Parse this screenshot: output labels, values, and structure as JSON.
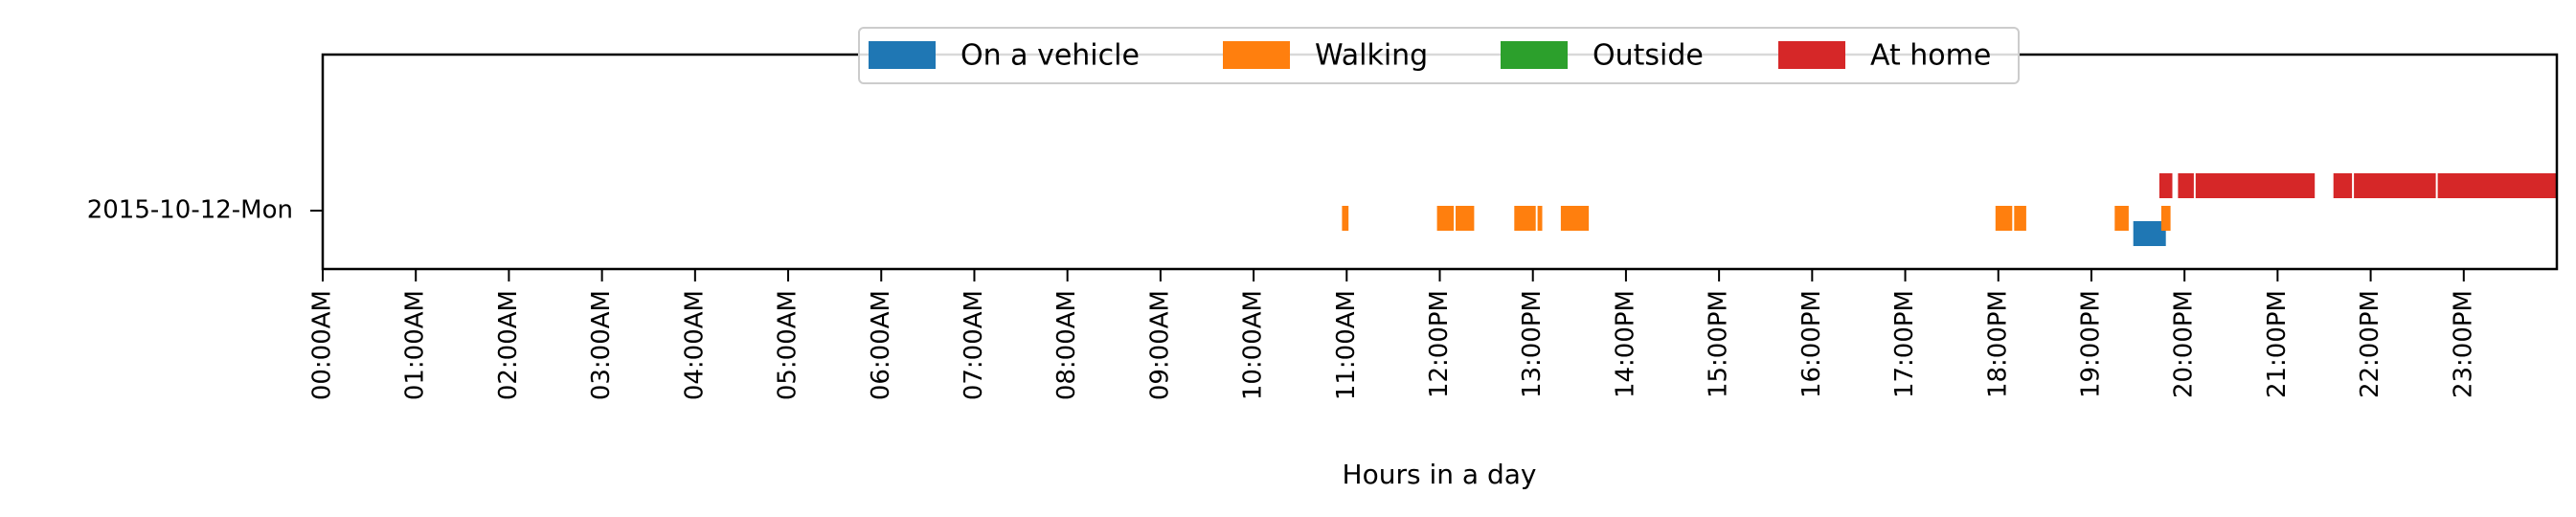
{
  "chart_data": {
    "type": "timeline",
    "title": "",
    "xlabel": "Hours in a day",
    "ylabel": "",
    "xlim": [
      0,
      24
    ],
    "categories": [
      "2015-10-12-Mon"
    ],
    "x_ticks": [
      "00:00AM",
      "01:00AM",
      "02:00AM",
      "03:00AM",
      "04:00AM",
      "05:00AM",
      "06:00AM",
      "07:00AM",
      "08:00AM",
      "09:00AM",
      "10:00AM",
      "11:00AM",
      "12:00PM",
      "13:00PM",
      "14:00PM",
      "15:00PM",
      "16:00PM",
      "17:00PM",
      "18:00PM",
      "19:00PM",
      "20:00PM",
      "21:00PM",
      "22:00PM",
      "23:00PM"
    ],
    "grid": false,
    "legend_position": "top-center",
    "series": [
      {
        "name": "On a vehicle",
        "color": "#1f77b4",
        "lane": "lower",
        "intervals": [
          [
            19.45,
            19.8
          ]
        ]
      },
      {
        "name": "Walking",
        "color": "#ff7f0e",
        "lane": "middle",
        "intervals": [
          [
            10.95,
            11.02
          ],
          [
            11.97,
            12.15
          ],
          [
            12.17,
            12.37
          ],
          [
            12.8,
            13.03
          ],
          [
            13.05,
            13.1
          ],
          [
            13.3,
            13.6
          ],
          [
            17.97,
            18.15
          ],
          [
            18.17,
            18.3
          ],
          [
            19.25,
            19.4
          ],
          [
            19.75,
            19.85
          ]
        ]
      },
      {
        "name": "Outside",
        "color": "#2ca02c",
        "lane": "middle",
        "intervals": []
      },
      {
        "name": "At home",
        "color": "#d62728",
        "lane": "upper",
        "intervals": [
          [
            19.73,
            19.87
          ],
          [
            19.93,
            20.1
          ],
          [
            20.12,
            21.4
          ],
          [
            21.6,
            21.8
          ],
          [
            21.82,
            22.7
          ],
          [
            22.72,
            24.0
          ]
        ]
      }
    ]
  }
}
